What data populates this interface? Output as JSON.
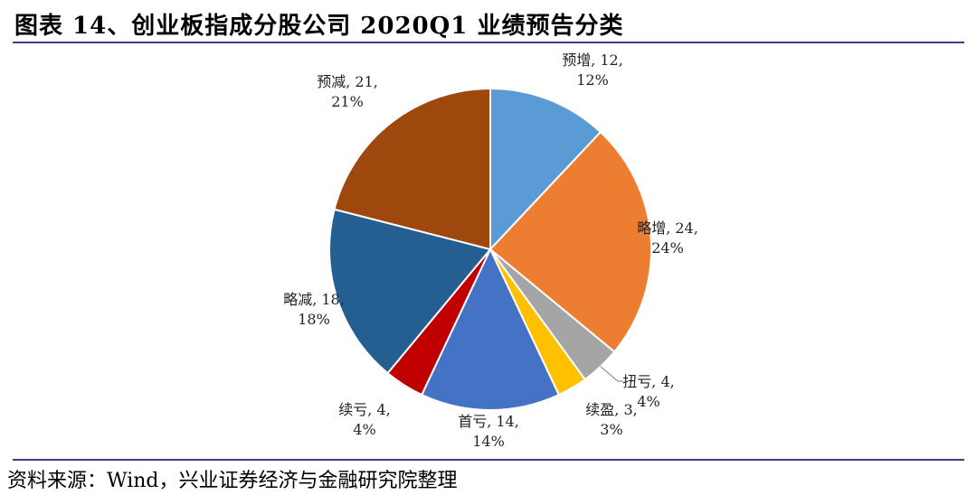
{
  "header": {
    "title": "图表 14、创业板指成分股公司 2020Q1 业绩预告分类"
  },
  "footer": {
    "source": "资料来源：Wind，兴业证券经济与金融研究院整理"
  },
  "colors": {
    "rule": "#3b3c8a"
  },
  "chart_data": {
    "type": "pie",
    "title": "",
    "slices": [
      {
        "label": "预增",
        "value": 12,
        "percent": "12%",
        "color": "#5b9bd5",
        "text_line1": "预增, 12,",
        "text_line2": "12%"
      },
      {
        "label": "略增",
        "value": 24,
        "percent": "24%",
        "color": "#ed7d31",
        "text_line1": "略增, 24,",
        "text_line2": "24%"
      },
      {
        "label": "扭亏",
        "value": 4,
        "percent": "4%",
        "color": "#a5a5a5",
        "text_line1": "扭亏, 4,",
        "text_line2": "4%"
      },
      {
        "label": "续盈",
        "value": 3,
        "percent": "3%",
        "color": "#ffc000",
        "text_line1": "续盈, 3,",
        "text_line2": "3%"
      },
      {
        "label": "首亏",
        "value": 14,
        "percent": "14%",
        "color": "#4472c4",
        "text_line1": "首亏, 14,",
        "text_line2": "14%"
      },
      {
        "label": "续亏",
        "value": 4,
        "percent": "4%",
        "color": "#c00000",
        "text_line1": "续亏, 4,",
        "text_line2": "4%"
      },
      {
        "label": "略减",
        "value": 18,
        "percent": "18%",
        "color": "#255e91",
        "text_line1": "略减, 18,",
        "text_line2": "18%"
      },
      {
        "label": "预减",
        "value": 21,
        "percent": "21%",
        "color": "#9e480e",
        "text_line1": "预减, 21,",
        "text_line2": "21%"
      }
    ]
  }
}
